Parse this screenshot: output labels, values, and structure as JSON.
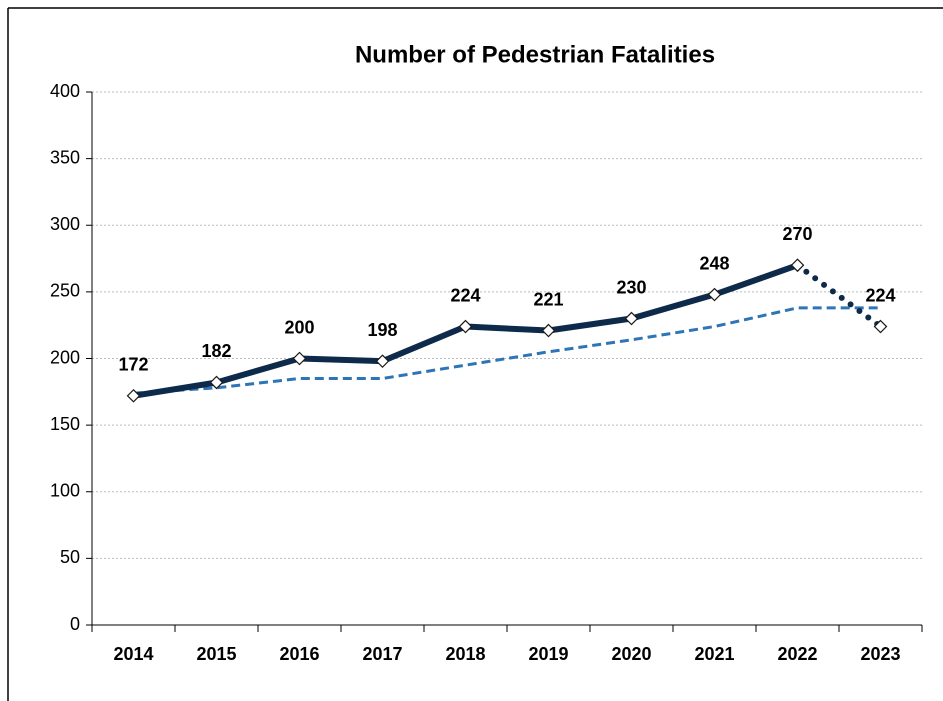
{
  "chart_data": {
    "type": "line",
    "title": "Number of Pedestrian Fatalities",
    "categories": [
      "2014",
      "2015",
      "2016",
      "2017",
      "2018",
      "2019",
      "2020",
      "2021",
      "2022",
      "2023"
    ],
    "series": [
      {
        "color": "#0d2a4a",
        "values": [
          172,
          182,
          200,
          198,
          224,
          221,
          230,
          248,
          270,
          224
        ],
        "dotted_last_segment": true,
        "markers": true,
        "data_labels": true
      },
      {
        "color": "#2e75b6",
        "values": [
          174,
          178,
          185,
          185,
          195,
          205,
          214,
          224,
          238,
          238
        ],
        "dashed": true
      }
    ],
    "ylim": [
      0,
      400
    ],
    "yticks": [
      0,
      50,
      100,
      150,
      200,
      250,
      300,
      350,
      400
    ],
    "grid": true
  }
}
